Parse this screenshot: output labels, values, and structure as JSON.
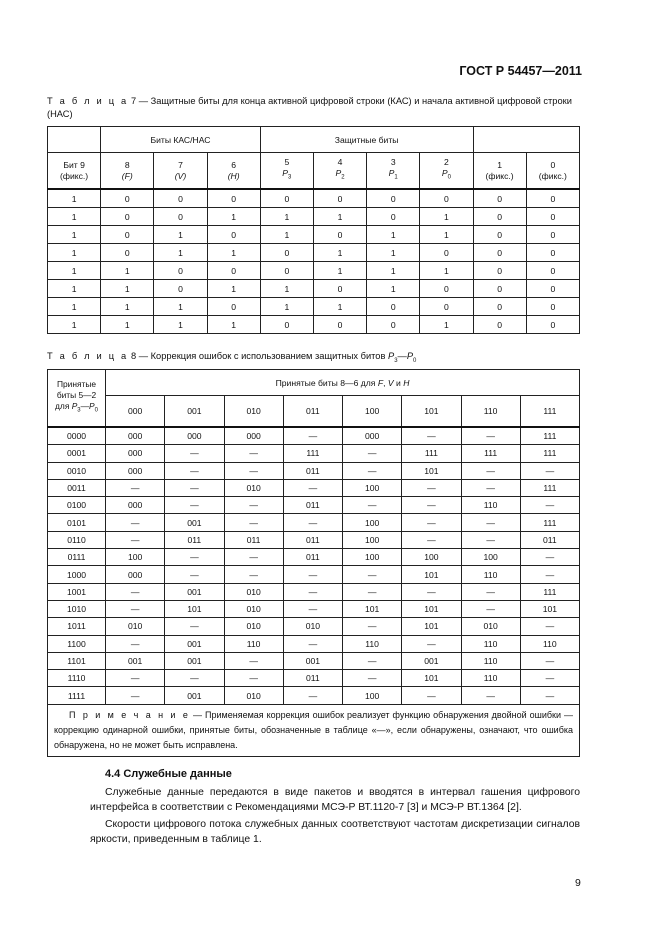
{
  "header": {
    "doc_id": "ГОСТ Р 54457—2011"
  },
  "table7": {
    "caption_label": "Т а б л и ц а",
    "caption_text": "7 — Защитные биты для конца активной цифровой строки (КАС) и начала активной цифровой строки (НАС)",
    "group_headers": [
      "Биты КАС/НАС",
      "Защитные биты"
    ],
    "columns": [
      {
        "num": "Бит 9",
        "sub": "(фикс.)"
      },
      {
        "num": "8",
        "sub": "(F)"
      },
      {
        "num": "7",
        "sub": "(V)"
      },
      {
        "num": "6",
        "sub": "(H)"
      },
      {
        "num": "5",
        "sub": "P3"
      },
      {
        "num": "4",
        "sub": "P2"
      },
      {
        "num": "3",
        "sub": "P1"
      },
      {
        "num": "2",
        "sub": "P0"
      },
      {
        "num": "1",
        "sub": "(фикс.)"
      },
      {
        "num": "0",
        "sub": "(фикс.)"
      }
    ],
    "rows": [
      [
        "1",
        "0",
        "0",
        "0",
        "0",
        "0",
        "0",
        "0",
        "0",
        "0"
      ],
      [
        "1",
        "0",
        "0",
        "1",
        "1",
        "1",
        "0",
        "1",
        "0",
        "0"
      ],
      [
        "1",
        "0",
        "1",
        "0",
        "1",
        "0",
        "1",
        "1",
        "0",
        "0"
      ],
      [
        "1",
        "0",
        "1",
        "1",
        "0",
        "1",
        "1",
        "0",
        "0",
        "0"
      ],
      [
        "1",
        "1",
        "0",
        "0",
        "0",
        "1",
        "1",
        "1",
        "0",
        "0"
      ],
      [
        "1",
        "1",
        "0",
        "1",
        "1",
        "0",
        "1",
        "0",
        "0",
        "0"
      ],
      [
        "1",
        "1",
        "1",
        "0",
        "1",
        "1",
        "0",
        "0",
        "0",
        "0"
      ],
      [
        "1",
        "1",
        "1",
        "1",
        "0",
        "0",
        "0",
        "1",
        "0",
        "0"
      ]
    ]
  },
  "table8": {
    "caption_label": "Т а б л и ц а",
    "caption_text": "8 — Коррекция ошибок с использованием защитных битов P3—P0",
    "corner_header": "Принятые биты 5—2 для P3—P0",
    "group_header": "Принятые биты 8—6 для F, V и H",
    "columns": [
      "000",
      "001",
      "010",
      "011",
      "100",
      "101",
      "110",
      "111"
    ],
    "rows": [
      [
        "0000",
        "000",
        "000",
        "000",
        "—",
        "000",
        "—",
        "—",
        "111"
      ],
      [
        "0001",
        "000",
        "—",
        "—",
        "111",
        "—",
        "111",
        "111",
        "111"
      ],
      [
        "0010",
        "000",
        "—",
        "—",
        "011",
        "—",
        "101",
        "—",
        "—"
      ],
      [
        "0011",
        "—",
        "—",
        "010",
        "—",
        "100",
        "—",
        "—",
        "111"
      ],
      [
        "0100",
        "000",
        "—",
        "—",
        "011",
        "—",
        "—",
        "110",
        "—"
      ],
      [
        "0101",
        "—",
        "001",
        "—",
        "—",
        "100",
        "—",
        "—",
        "111"
      ],
      [
        "0110",
        "—",
        "011",
        "011",
        "011",
        "100",
        "—",
        "—",
        "011"
      ],
      [
        "0111",
        "100",
        "—",
        "—",
        "011",
        "100",
        "100",
        "100",
        "—"
      ],
      [
        "1000",
        "000",
        "—",
        "—",
        "—",
        "—",
        "101",
        "110",
        "—"
      ],
      [
        "1001",
        "—",
        "001",
        "010",
        "—",
        "—",
        "—",
        "—",
        "111"
      ],
      [
        "1010",
        "—",
        "101",
        "010",
        "—",
        "101",
        "101",
        "—",
        "101"
      ],
      [
        "1011",
        "010",
        "—",
        "010",
        "010",
        "—",
        "101",
        "010",
        "—"
      ],
      [
        "1100",
        "—",
        "001",
        "110",
        "—",
        "110",
        "—",
        "110",
        "110"
      ],
      [
        "1101",
        "001",
        "001",
        "—",
        "001",
        "—",
        "001",
        "110",
        "—"
      ],
      [
        "1110",
        "—",
        "—",
        "—",
        "011",
        "—",
        "101",
        "110",
        "—"
      ],
      [
        "1111",
        "—",
        "001",
        "010",
        "—",
        "100",
        "—",
        "—",
        "—"
      ]
    ],
    "note_label": "П р и м е ч а н и е",
    "note_text": "— Применяемая коррекция ошибок реализует функцию обнаружения двойной ошибки — коррекцию одинарной ошибки, принятые биты, обозначенные в таблице «—», если обнаружены, означают, что ошибка обнаружена, но не может быть исправлена."
  },
  "section": {
    "heading": "4.4 Служебные данные",
    "paragraphs": [
      "Служебные данные передаются в виде пакетов и вводятся в интервал гашения цифрового интерфейса в соответствии с Рекомендациями МСЭ-Р ВТ.1120-7 [3] и МСЭ-Р ВТ.1364 [2].",
      "Скорости цифрового потока служебных данных соответствуют частотам дискретизации сигналов яркости, приведенным в таблице 1."
    ]
  },
  "page_number": "9"
}
